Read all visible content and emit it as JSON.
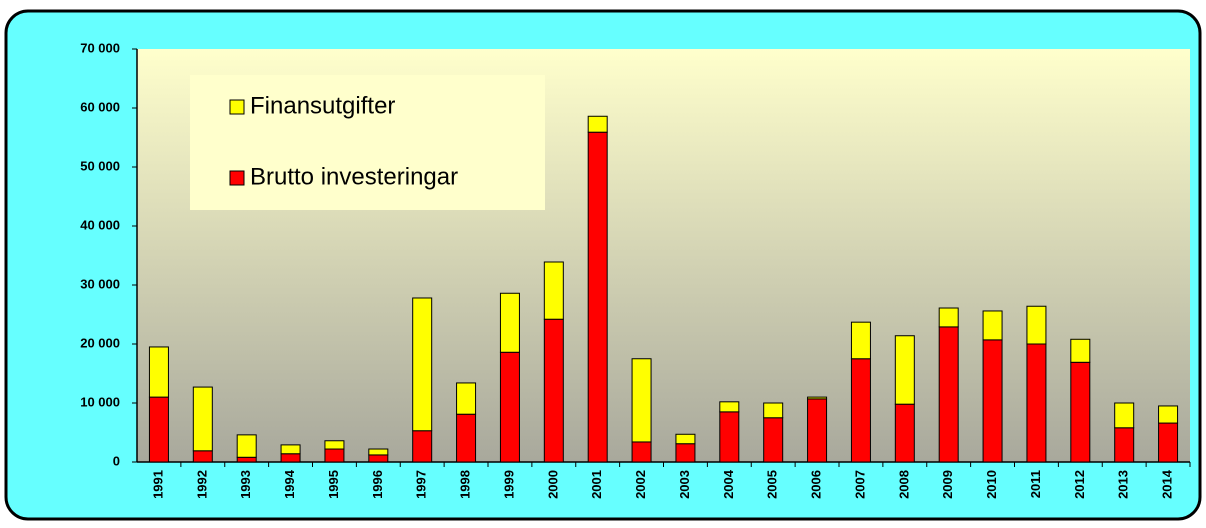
{
  "chart_data": {
    "type": "bar",
    "stacked": true,
    "categories": [
      "1991",
      "1992",
      "1993",
      "1994",
      "1995",
      "1996",
      "1997",
      "1998",
      "1999",
      "2000",
      "2001",
      "2002",
      "2003",
      "2004",
      "2005",
      "2006",
      "2007",
      "2008",
      "2009",
      "2010",
      "2011",
      "2012",
      "2013",
      "2014"
    ],
    "series": [
      {
        "name": "Brutto investeringar",
        "color": "#ff0000",
        "values": [
          11000,
          1900,
          800,
          1400,
          2200,
          1200,
          5300,
          8100,
          18600,
          24200,
          55900,
          3400,
          3100,
          8500,
          7500,
          10700,
          17500,
          9800,
          22900,
          20700,
          20000,
          16900,
          5800,
          6600
        ]
      },
      {
        "name": "Finansutgifter",
        "color": "#ffff00",
        "values": [
          8500,
          10800,
          3800,
          1500,
          1400,
          1000,
          22500,
          5300,
          10000,
          9700,
          2700,
          14100,
          1600,
          1700,
          2500,
          300,
          6200,
          11600,
          3200,
          4900,
          6400,
          3900,
          4200,
          2900
        ]
      }
    ],
    "ylim": [
      0,
      70000
    ],
    "yticks": [
      {
        "value": 0,
        "label": "0"
      },
      {
        "value": 10000,
        "label": "10 000"
      },
      {
        "value": 20000,
        "label": "20 000"
      },
      {
        "value": 30000,
        "label": "30 000"
      },
      {
        "value": 40000,
        "label": "40 000"
      },
      {
        "value": 50000,
        "label": "50 000"
      },
      {
        "value": 60000,
        "label": "60 000"
      },
      {
        "value": 70000,
        "label": "70 000"
      }
    ]
  }
}
